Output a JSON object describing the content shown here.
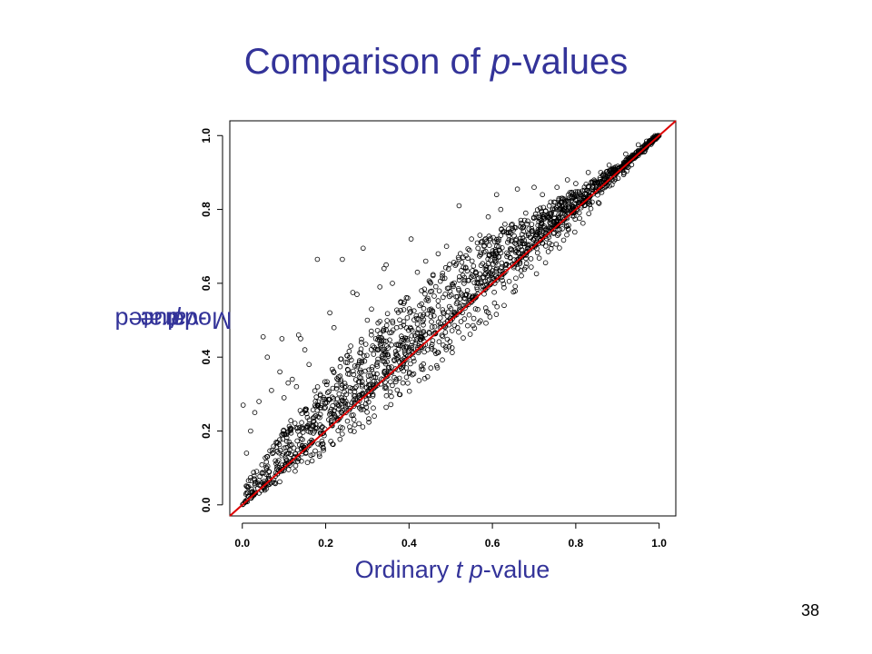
{
  "slide": {
    "title_prefix": "Comparison of ",
    "title_italic": "p",
    "title_suffix": "-values",
    "page_number": "38"
  },
  "chart_data": {
    "type": "scatter",
    "title": "",
    "xlabel_parts": [
      "Ordinary ",
      "t",
      " ",
      "p",
      "-value"
    ],
    "ylabel_parts": [
      "Moderated ",
      "t",
      " ",
      "p",
      "-value"
    ],
    "xlim": [
      -0.03,
      1.04
    ],
    "ylim": [
      -0.03,
      1.04
    ],
    "x_ticks": [
      0.0,
      0.2,
      0.4,
      0.6,
      0.8,
      1.0
    ],
    "y_ticks": [
      0.0,
      0.2,
      0.4,
      0.6,
      0.8,
      1.0
    ],
    "x_tick_labels": [
      "0.0",
      "0.2",
      "0.4",
      "0.6",
      "0.8",
      "1.0"
    ],
    "y_tick_labels": [
      "0.0",
      "0.2",
      "0.4",
      "0.6",
      "0.8",
      "1.0"
    ],
    "grid": false,
    "marker": "open-circle",
    "reference_line": {
      "from": [
        0,
        0
      ],
      "to": [
        1,
        1
      ],
      "color": "#dd0000"
    },
    "point_color": "#000000",
    "outlier_points": [
      [
        0.002,
        0.27
      ],
      [
        0.05,
        0.455
      ],
      [
        0.06,
        0.4
      ],
      [
        0.095,
        0.45
      ],
      [
        0.135,
        0.46
      ],
      [
        0.14,
        0.45
      ],
      [
        0.15,
        0.42
      ],
      [
        0.18,
        0.665
      ],
      [
        0.21,
        0.52
      ],
      [
        0.24,
        0.665
      ],
      [
        0.265,
        0.575
      ],
      [
        0.275,
        0.57
      ],
      [
        0.29,
        0.695
      ],
      [
        0.31,
        0.53
      ],
      [
        0.33,
        0.59
      ],
      [
        0.34,
        0.64
      ],
      [
        0.345,
        0.65
      ],
      [
        0.36,
        0.6
      ],
      [
        0.38,
        0.55
      ],
      [
        0.405,
        0.72
      ],
      [
        0.42,
        0.63
      ],
      [
        0.44,
        0.66
      ],
      [
        0.47,
        0.68
      ],
      [
        0.49,
        0.7
      ],
      [
        0.52,
        0.81
      ],
      [
        0.55,
        0.72
      ],
      [
        0.57,
        0.73
      ],
      [
        0.59,
        0.78
      ],
      [
        0.61,
        0.84
      ],
      [
        0.62,
        0.8
      ],
      [
        0.66,
        0.855
      ],
      [
        0.7,
        0.86
      ],
      [
        0.72,
        0.84
      ],
      [
        0.755,
        0.86
      ],
      [
        0.78,
        0.88
      ],
      [
        0.83,
        0.9
      ],
      [
        0.88,
        0.92
      ],
      [
        0.92,
        0.95
      ],
      [
        0.95,
        0.975
      ],
      [
        0.97,
        0.985
      ],
      [
        0.09,
        0.36
      ],
      [
        0.12,
        0.34
      ],
      [
        0.16,
        0.38
      ],
      [
        0.22,
        0.48
      ],
      [
        0.26,
        0.43
      ],
      [
        0.3,
        0.5
      ],
      [
        0.32,
        0.45
      ],
      [
        0.37,
        0.48
      ],
      [
        0.43,
        0.58
      ],
      [
        0.48,
        0.62
      ],
      [
        0.53,
        0.67
      ],
      [
        0.58,
        0.7
      ],
      [
        0.63,
        0.76
      ],
      [
        0.68,
        0.79
      ],
      [
        0.74,
        0.82
      ],
      [
        0.8,
        0.87
      ],
      [
        0.86,
        0.9
      ],
      [
        0.01,
        0.14
      ],
      [
        0.02,
        0.2
      ],
      [
        0.03,
        0.25
      ],
      [
        0.04,
        0.28
      ],
      [
        0.07,
        0.31
      ],
      [
        0.1,
        0.29
      ],
      [
        0.11,
        0.33
      ],
      [
        0.13,
        0.32
      ]
    ]
  }
}
